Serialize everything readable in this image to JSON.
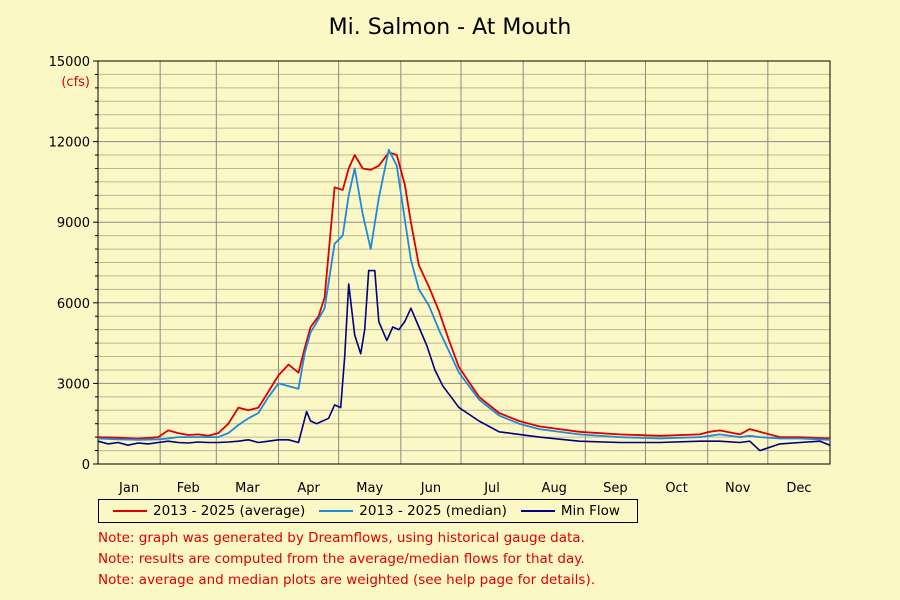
{
  "chart_data": {
    "type": "line",
    "title": "Mi. Salmon - At Mouth",
    "ylabel": "(cfs)",
    "ylim": [
      0,
      15000
    ],
    "yticks": [
      0,
      3000,
      6000,
      9000,
      12000,
      15000
    ],
    "xlim": [
      0,
      365
    ],
    "months": [
      "Jan",
      "Feb",
      "Mar",
      "Apr",
      "May",
      "Jun",
      "Jul",
      "Aug",
      "Sep",
      "Oct",
      "Nov",
      "Dec"
    ],
    "month_starts": [
      0,
      31,
      59,
      90,
      120,
      151,
      181,
      212,
      243,
      273,
      304,
      334
    ],
    "grid": true,
    "series": [
      {
        "name": "2013 - 2025 (average)",
        "color": "#dd0000",
        "x": [
          0,
          10,
          20,
          30,
          35,
          40,
          45,
          50,
          55,
          60,
          65,
          70,
          75,
          80,
          85,
          90,
          95,
          100,
          103,
          106,
          110,
          113,
          118,
          122,
          125,
          128,
          132,
          136,
          140,
          145,
          149,
          153,
          156,
          160,
          165,
          170,
          175,
          180,
          190,
          200,
          210,
          220,
          240,
          260,
          280,
          300,
          305,
          310,
          320,
          325,
          330,
          340,
          350,
          365
        ],
        "y": [
          1000,
          980,
          940,
          1000,
          1250,
          1150,
          1080,
          1100,
          1050,
          1150,
          1500,
          2100,
          2000,
          2100,
          2700,
          3300,
          3700,
          3400,
          4300,
          5100,
          5500,
          6200,
          10300,
          10200,
          11000,
          11500,
          11000,
          10950,
          11100,
          11600,
          11500,
          10400,
          9000,
          7400,
          6600,
          5700,
          4600,
          3600,
          2500,
          1900,
          1600,
          1400,
          1200,
          1100,
          1050,
          1100,
          1200,
          1250,
          1100,
          1300,
          1200,
          1000,
          1000,
          950
        ]
      },
      {
        "name": "2013 - 2025 (median)",
        "color": "#1f8ad9",
        "x": [
          0,
          10,
          20,
          30,
          35,
          40,
          45,
          50,
          55,
          60,
          65,
          70,
          75,
          80,
          85,
          90,
          95,
          100,
          103,
          106,
          110,
          113,
          118,
          122,
          125,
          128,
          132,
          136,
          140,
          145,
          149,
          153,
          156,
          160,
          165,
          170,
          175,
          180,
          190,
          200,
          210,
          220,
          240,
          260,
          280,
          300,
          305,
          310,
          320,
          325,
          330,
          340,
          350,
          365
        ],
        "y": [
          950,
          920,
          900,
          920,
          950,
          1000,
          1000,
          1000,
          1000,
          1000,
          1150,
          1450,
          1700,
          1900,
          2500,
          3000,
          2900,
          2800,
          4100,
          4900,
          5400,
          5800,
          8200,
          8500,
          10000,
          11000,
          9300,
          8000,
          9900,
          11700,
          11100,
          9100,
          7600,
          6500,
          5900,
          5000,
          4200,
          3400,
          2400,
          1800,
          1500,
          1300,
          1100,
          1000,
          950,
          1000,
          1050,
          1100,
          1000,
          1050,
          1000,
          950,
          950,
          900
        ]
      },
      {
        "name": "Min Flow",
        "color": "#000080",
        "x": [
          0,
          5,
          10,
          15,
          20,
          25,
          30,
          35,
          40,
          45,
          50,
          55,
          60,
          65,
          70,
          75,
          80,
          85,
          90,
          95,
          100,
          104,
          106,
          109,
          112,
          115,
          118,
          121,
          123,
          125,
          128,
          131,
          133,
          135,
          138,
          140,
          144,
          147,
          150,
          153,
          156,
          160,
          164,
          168,
          172,
          176,
          180,
          190,
          200,
          210,
          220,
          240,
          260,
          280,
          300,
          310,
          320,
          325,
          330,
          340,
          350,
          360,
          365
        ],
        "y": [
          850,
          750,
          800,
          700,
          780,
          750,
          800,
          850,
          800,
          780,
          820,
          800,
          800,
          820,
          850,
          900,
          800,
          850,
          900,
          900,
          800,
          1950,
          1600,
          1500,
          1600,
          1700,
          2200,
          2100,
          4000,
          6700,
          4800,
          4100,
          5000,
          7200,
          7200,
          5300,
          4600,
          5100,
          5000,
          5300,
          5800,
          5100,
          4400,
          3500,
          2900,
          2500,
          2100,
          1600,
          1200,
          1100,
          1000,
          850,
          800,
          800,
          850,
          850,
          800,
          850,
          500,
          750,
          800,
          850,
          700
        ]
      }
    ]
  },
  "legend": {
    "items": [
      {
        "label": "2013 - 2025 (average)",
        "color": "#dd0000"
      },
      {
        "label": "2013 - 2025 (median)",
        "color": "#1f8ad9"
      },
      {
        "label": "Min Flow",
        "color": "#000080"
      }
    ]
  },
  "notes": [
    "Note: graph was generated by Dreamflows, using historical gauge data.",
    "Note: results are computed from the average/median flows for that day.",
    "Note: average and median plots are weighted (see help page for details)."
  ],
  "colors": {
    "background": "#fbf8c6",
    "note_text": "#e00000",
    "unit_label": "#e00000"
  }
}
